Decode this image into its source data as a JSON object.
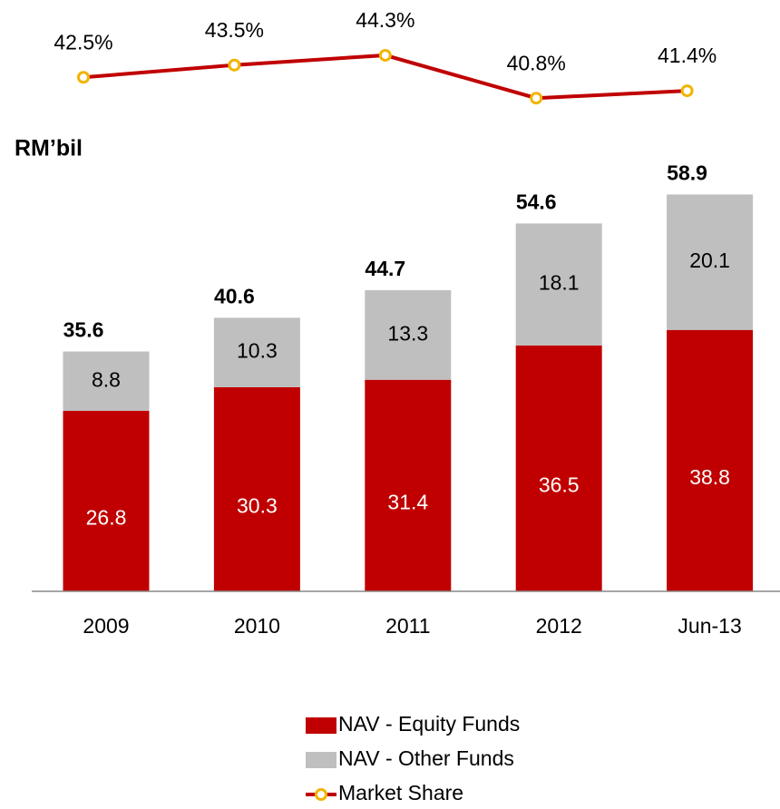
{
  "chart_data": {
    "type": "bar",
    "stacked": true,
    "y_axis_label": "RM’bil",
    "categories": [
      "2009",
      "2010",
      "2011",
      "2012",
      "Jun-13"
    ],
    "series": [
      {
        "name": "NAV - Equity Funds",
        "color": "#c00000",
        "values": [
          26.8,
          30.3,
          31.4,
          36.5,
          38.8
        ]
      },
      {
        "name": "NAV - Other Funds",
        "color": "#bfbfbf",
        "values": [
          8.8,
          10.3,
          13.3,
          18.1,
          20.1
        ]
      },
      {
        "name": "Market Share",
        "type": "line",
        "axis": "y2",
        "color": "#c00000",
        "marker_color": "#f2b400",
        "values": [
          42.5,
          43.5,
          44.3,
          40.8,
          41.4
        ],
        "value_labels": [
          "42.5%",
          "43.5%",
          "44.3%",
          "40.8%",
          "41.4%"
        ]
      }
    ],
    "totals": [
      35.6,
      40.6,
      44.7,
      54.6,
      58.9
    ],
    "ylim": [
      0,
      70
    ],
    "y2lim": [
      38,
      46
    ]
  }
}
